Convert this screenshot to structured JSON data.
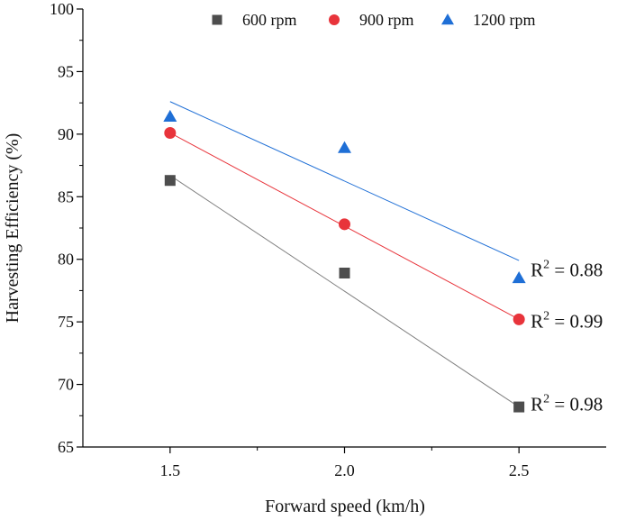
{
  "chart_data": {
    "type": "scatter",
    "title": "",
    "xlabel": "Forward speed (km/h)",
    "ylabel": "Harvesting Efficiency (%)",
    "xlim": [
      1.25,
      2.75
    ],
    "ylim": [
      65,
      100
    ],
    "xticks": [
      1.5,
      2.0,
      2.5
    ],
    "xtick_labels": [
      "1.5",
      "2.0",
      "2.5"
    ],
    "yticks": [
      65,
      70,
      75,
      80,
      85,
      90,
      95,
      100
    ],
    "ytick_labels": [
      "65",
      "70",
      "75",
      "80",
      "85",
      "90",
      "95",
      "100"
    ],
    "grid": false,
    "legend_position": "top",
    "series": [
      {
        "name": "600 rpm",
        "marker": "square",
        "color": "#4d4d4d",
        "line_color": "#808080",
        "x": [
          1.5,
          2.0,
          2.5
        ],
        "y": [
          86.3,
          78.9,
          68.2
        ],
        "fit": [
          86.7,
          77.45,
          68.2
        ],
        "r2_label": "R",
        "r2_sup": "2",
        "r2_value": " = 0.98"
      },
      {
        "name": "900 rpm",
        "marker": "circle",
        "color": "#e8343b",
        "line_color": "#e8343b",
        "x": [
          1.5,
          2.0,
          2.5
        ],
        "y": [
          90.1,
          82.8,
          75.2
        ],
        "fit": [
          90.1,
          82.65,
          75.2
        ],
        "r2_label": "R",
        "r2_sup": "2",
        "r2_value": " = 0.99"
      },
      {
        "name": "1200 rpm",
        "marker": "triangle",
        "color": "#1f6fd6",
        "line_color": "#1f6fd6",
        "x": [
          1.5,
          2.0,
          2.5
        ],
        "y": [
          91.4,
          88.9,
          78.5
        ],
        "fit": [
          92.6,
          86.25,
          79.9
        ],
        "r2_label": "R",
        "r2_sup": "2",
        "r2_value": " = 0.88"
      }
    ]
  }
}
